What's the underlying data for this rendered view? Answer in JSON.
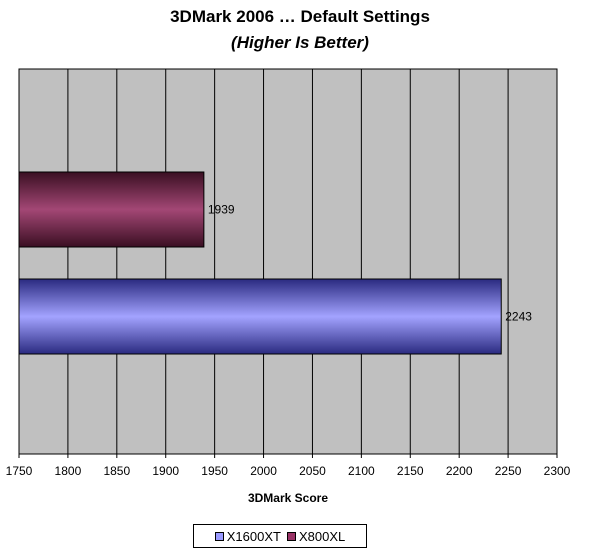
{
  "chart_data": {
    "type": "bar",
    "orientation": "horizontal",
    "title": "3DMark 2006 … Default Settings",
    "subtitle": "(Higher Is Better)",
    "xlabel": "3DMark Score",
    "ylabel": "",
    "xlim": [
      1750,
      2300
    ],
    "xticks": [
      "1750",
      "1800",
      "1850",
      "1900",
      "1950",
      "2000",
      "2050",
      "2100",
      "2150",
      "2200",
      "2250",
      "2300"
    ],
    "grid": true,
    "plot_background": "#c0c0c0",
    "legend_position": "bottom",
    "series": [
      {
        "name": "X1600XT",
        "value": 2243,
        "label": "2243",
        "color": "#9999ff",
        "dark_color": "#2a2a80"
      },
      {
        "name": "X800XL",
        "value": 1939,
        "label": "1939",
        "color": "#993366",
        "dark_color": "#3a0f22"
      }
    ]
  }
}
